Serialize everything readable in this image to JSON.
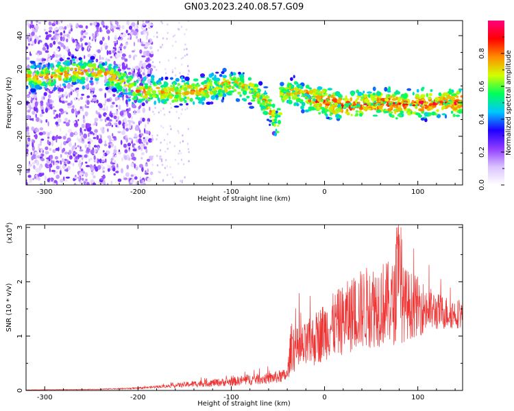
{
  "title": "GN03.2023.240.08.57.G09",
  "chart_data": [
    {
      "type": "heatmap",
      "title": "",
      "xlabel": "Height of straight line (km)",
      "ylabel": "Frequency (Hz)",
      "xlim": [
        -320,
        148
      ],
      "ylim": [
        -49,
        49
      ],
      "xticks": [
        -300,
        -200,
        -100,
        0,
        100
      ],
      "yticks": [
        -40,
        -20,
        0,
        20,
        40
      ],
      "ridge": {
        "x": [
          -305,
          -290,
          -270,
          -250,
          -240,
          -225,
          -210,
          -200,
          -185,
          -160,
          -130,
          -110,
          -95,
          -80,
          -70,
          -60,
          -55,
          -50,
          -46,
          -40,
          -25,
          -10,
          0,
          20,
          40,
          60,
          80,
          100,
          120,
          148
        ],
        "y": [
          15,
          16,
          18,
          19,
          17,
          15,
          10,
          7,
          7,
          6,
          8,
          10,
          11,
          8,
          4,
          -2,
          -8,
          -14,
          4,
          7,
          5,
          2,
          1,
          -2,
          -1,
          0,
          -1,
          -1,
          0,
          0
        ]
      },
      "colorbar": {
        "label": "Normalized spectral amplitude",
        "range": [
          0,
          1
        ],
        "ticks": [
          0.0,
          0.2,
          0.4,
          0.6,
          0.8
        ],
        "tick_labels": [
          "0.0",
          "0.2",
          "0.4",
          "0.6",
          "0.8"
        ],
        "colormap": [
          "#ffffff",
          "#d9c2ff",
          "#8f3cff",
          "#1e00ff",
          "#00c8ff",
          "#00ff5a",
          "#d4ff00",
          "#ff8c00",
          "#ff0000",
          "#ff007f"
        ]
      },
      "grid": false
    },
    {
      "type": "line",
      "title": "",
      "xlabel": "Height of straight line (km)",
      "ylabel": "SNR (10 * v/v)",
      "yscale_label": "(x10",
      "yscale_exp": "4",
      "xlim": [
        -320,
        148
      ],
      "ylim": [
        0,
        3.05
      ],
      "xticks": [
        -300,
        -200,
        -100,
        0,
        100
      ],
      "yticks": [
        0,
        1,
        2,
        3
      ],
      "series": [
        {
          "color": "#ee3333",
          "envelope_x": [
            -320,
            -250,
            -200,
            -170,
            -140,
            -100,
            -80,
            -60,
            -50,
            -40,
            -35,
            -30,
            -20,
            0,
            20,
            40,
            60,
            80,
            100,
            120,
            148
          ],
          "envelope_y": [
            0.01,
            0.02,
            0.04,
            0.08,
            0.12,
            0.16,
            0.2,
            0.22,
            0.25,
            0.28,
            0.9,
            0.7,
            0.8,
            1.1,
            1.3,
            1.5,
            1.6,
            1.6,
            1.55,
            1.45,
            1.4
          ],
          "noise": [
            0.003,
            0.005,
            0.015,
            0.03,
            0.06,
            0.08,
            0.1,
            0.1,
            0.12,
            0.12,
            0.5,
            0.45,
            0.45,
            0.55,
            0.65,
            0.75,
            0.8,
            0.75,
            0.55,
            0.35,
            0.25
          ]
        }
      ],
      "grid": false
    }
  ]
}
